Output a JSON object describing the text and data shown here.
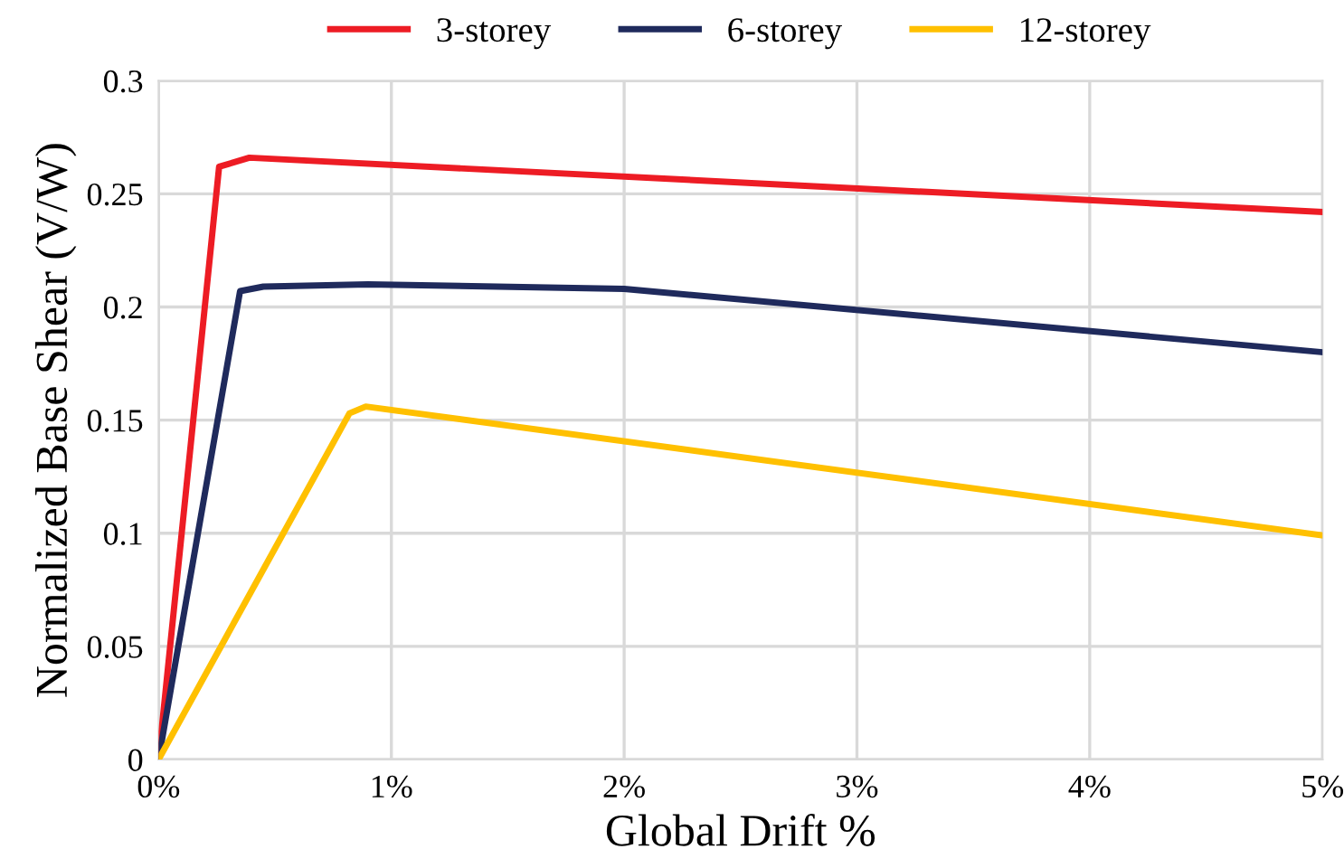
{
  "chart_data": {
    "type": "line",
    "xlabel": "Global Drift %",
    "ylabel": "Normalized Base Shear (V/W)",
    "xlim": [
      0,
      5
    ],
    "xticks": [
      {
        "value": 0,
        "label": "0%"
      },
      {
        "value": 1,
        "label": "1%"
      },
      {
        "value": 2,
        "label": "2%"
      },
      {
        "value": 3,
        "label": "3%"
      },
      {
        "value": 4,
        "label": "4%"
      },
      {
        "value": 5,
        "label": "5%"
      }
    ],
    "ylim": [
      0,
      0.3
    ],
    "yticks": [
      0,
      0.05,
      0.1,
      0.15,
      0.2,
      0.25,
      0.3
    ],
    "grid": true,
    "legend": "top",
    "marker": "none",
    "line_style": "solid",
    "series": [
      {
        "name": "3-storey",
        "color": "#ed1c24",
        "x": [
          0,
          0.26,
          0.39,
          5
        ],
        "values": [
          0,
          0.262,
          0.266,
          0.242
        ]
      },
      {
        "name": "6-storey",
        "color": "#1f2a5c",
        "x": [
          0,
          0.35,
          0.45,
          0.9,
          2.0,
          5
        ],
        "values": [
          0,
          0.207,
          0.209,
          0.21,
          0.208,
          0.18
        ]
      },
      {
        "name": "12-storey",
        "color": "#ffc000",
        "x": [
          0,
          0.82,
          0.89,
          5
        ],
        "values": [
          0,
          0.153,
          0.156,
          0.099
        ]
      }
    ]
  }
}
